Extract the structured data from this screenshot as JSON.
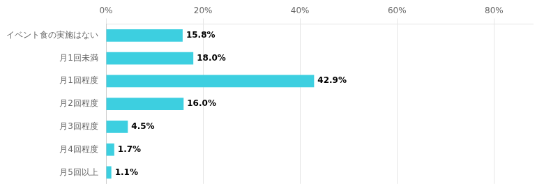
{
  "chart_data": {
    "type": "bar",
    "orientation": "horizontal",
    "categories": [
      "イベント食の実施はない",
      "月1回未満",
      "月1回程度",
      "月2回程度",
      "月3回程度",
      "月4回程度",
      "月5回以上"
    ],
    "values": [
      15.8,
      18.0,
      42.9,
      16.0,
      4.5,
      1.7,
      1.1
    ],
    "value_labels": [
      "15.8%",
      "18.0%",
      "42.9%",
      "16.0%",
      "4.5%",
      "1.7%",
      "1.1%"
    ],
    "data_labels": true,
    "color": "#3DCFE0",
    "xlim": [
      0,
      88
    ],
    "xticks": [
      {
        "value": 0,
        "label": "0%"
      },
      {
        "value": 20,
        "label": "20%"
      },
      {
        "value": 40,
        "label": "40%"
      },
      {
        "value": 60,
        "label": "60%"
      },
      {
        "value": 80,
        "label": "80%"
      }
    ],
    "grid": true
  }
}
